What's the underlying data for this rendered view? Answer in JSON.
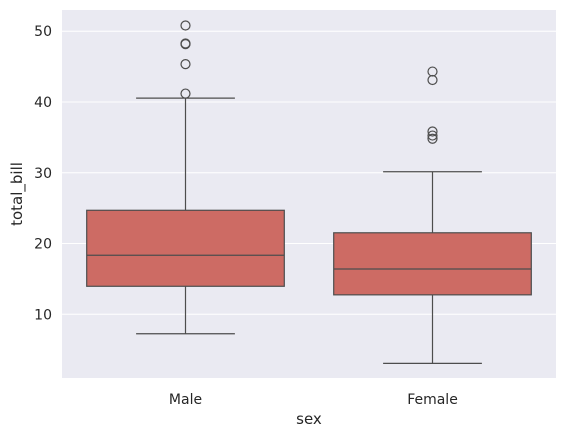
{
  "chart_data": {
    "type": "box",
    "xlabel": "sex",
    "ylabel": "total_bill",
    "categories": [
      "Male",
      "Female"
    ],
    "ylim": [
      1,
      53
    ],
    "yticks": [
      10,
      20,
      30,
      40,
      50
    ],
    "grid": true,
    "colors": {
      "background": "#eaeaf2",
      "grid": "#ffffff",
      "box_fill": "#cd6b64",
      "line": "#4d4d4d"
    },
    "boxes": [
      {
        "category": "Male",
        "whisker_low": 7.25,
        "q1": 13.96,
        "median": 18.35,
        "q3": 24.7,
        "whisker_high": 40.55,
        "outliers": [
          41.19,
          45.35,
          48.17,
          48.27,
          50.81
        ]
      },
      {
        "category": "Female",
        "whisker_low": 3.07,
        "q1": 12.75,
        "median": 16.4,
        "q3": 21.52,
        "whisker_high": 30.14,
        "outliers": [
          34.81,
          35.26,
          35.83,
          43.11,
          44.3
        ]
      }
    ]
  }
}
